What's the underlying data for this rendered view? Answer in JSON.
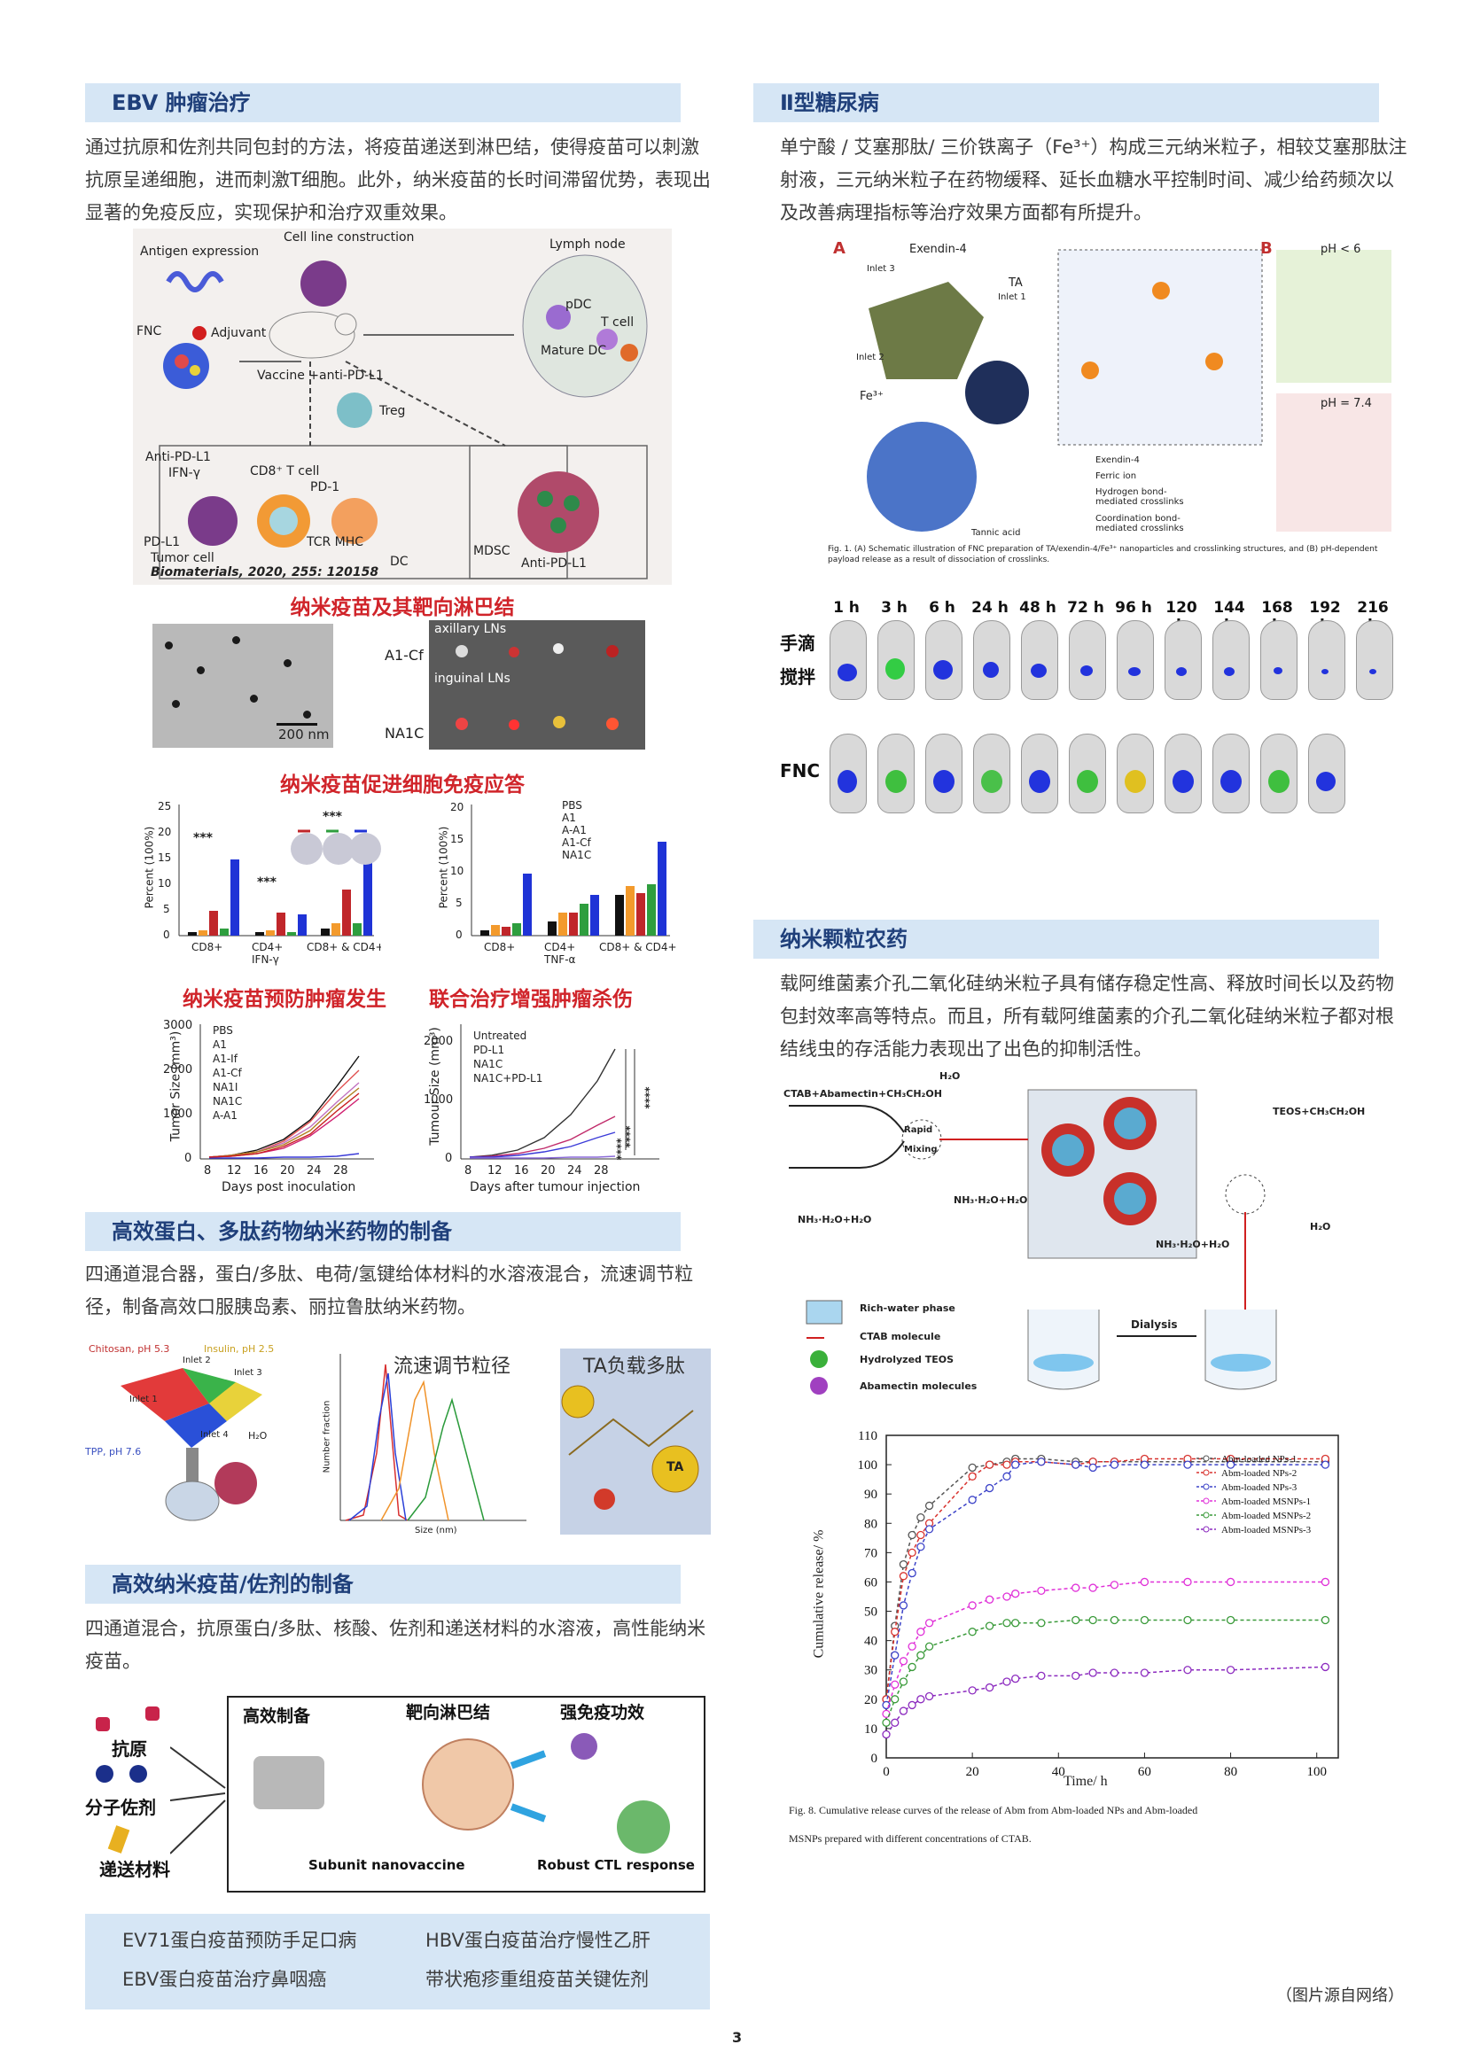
{
  "sections": {
    "ebv": {
      "title": "EBV 肿瘤治疗",
      "text": "通过抗原和佐剂共同包封的方法，将疫苗递送到淋巴结，使得疫苗可以刺激抗原呈递细胞，进而刺激T细胞。此外，纳米疫苗的长时间滞留优势，表现出显著的免疫反应，实现保护和治疗双重效果。"
    },
    "diabetes": {
      "title": "Ⅱ型糖尿病",
      "text": "单宁酸 / 艾塞那肽/ 三价铁离子（Fe³⁺）构成三元纳米粒子，相较艾塞那肽注射液，三元纳米粒子在药物缓释、延长血糖水平控制时间、减少给药频次以及改善病理指标等治疗效果方面都有所提升。"
    },
    "protein": {
      "title": "高效蛋白、多肽药物纳米药物的制备",
      "text": "四通道混合器，蛋白/多肽、电荷/氢键给体材料的水溶液混合，流速调节粒径，制备高效口服胰岛素、丽拉鲁肽纳米药物。"
    },
    "pesticide": {
      "title": "纳米颗粒农药",
      "text": "载阿维菌素介孔二氧化硅纳米粒子具有储存稳定性高、释放时间长以及药物包封效率高等特点。而且，所有载阿维菌素的介孔二氧化硅纳米粒子都对根结线虫的存活能力表现出了出色的抑制活性。"
    },
    "vaccine": {
      "title": "高效纳米疫苗/佐剂的制备",
      "text": "四通道混合，抗原蛋白/多肽、核酸、佐剂和递送材料的水溶液，高性能纳米疫苗。"
    }
  },
  "captions": {
    "lymph": "纳米疫苗及其靶向淋巴结",
    "cellular": "纳米疫苗促进细胞免疫应答",
    "prevent": "纳米疫苗预防肿瘤发生",
    "combo": "联合治疗增强肿瘤杀伤"
  },
  "fig_ebv": {
    "antigen_expression": "Antigen expression",
    "cell_line": "Cell line construction",
    "lymph_node": "Lymph node",
    "fnc": "FNC",
    "adjuvant": "Adjuvant",
    "pdc": "pDC",
    "tcell": "T cell",
    "mature_dc": "Mature DC",
    "vaccine_anti": "Vaccine +anti-PD-L1",
    "treg": "Treg",
    "anti_pdl1": "Anti-PD-L1",
    "ifn": "IFN-γ",
    "cd8": "CD8⁺ T cell",
    "pd1": "PD-1",
    "pdl1": "PD-L1",
    "tcr": "TCR MHC",
    "tumor_cell": "Tumor cell",
    "dc": "DC",
    "mdsc": "MDSC",
    "anti_pdl1_2": "Anti-PD-L1",
    "ref": "Biomaterials, 2020, 255: 120158"
  },
  "fig_tem": {
    "scale": "200 nm",
    "a1cf": "A1-Cf",
    "na1c": "NA1C",
    "axillary": "axillary LNs",
    "inguinal": "inguinal LNs"
  },
  "bar_left": {
    "ylabel": "Percent (100%)",
    "yticks": [
      "0",
      "5",
      "10",
      "15",
      "20",
      "25"
    ],
    "groups": [
      "CD8+",
      "CD4+ IFN-γ",
      "CD8+ & CD4+"
    ],
    "sig": [
      "***",
      "***",
      "***"
    ]
  },
  "bar_right": {
    "ylabel": "Percent (100%)",
    "yticks": [
      "0",
      "5",
      "10",
      "15",
      "20"
    ],
    "groups": [
      "CD8+",
      "CD4+ TNF-α",
      "CD8+ & CD4+"
    ],
    "legend": [
      "PBS",
      "A1",
      "A-A1",
      "A1-Cf",
      "NA1C"
    ],
    "legend_colors": [
      "#111111",
      "#f39a2c",
      "#c0262a",
      "#2e9e3e",
      "#1f33d6"
    ]
  },
  "line_left": {
    "ylabel": "Tumor Size (mm³)",
    "xlabel": "Days post inoculation",
    "yticks": [
      "0",
      "1000",
      "2000",
      "3000"
    ],
    "xticks": [
      "8",
      "12",
      "16",
      "20",
      "24",
      "28"
    ],
    "legend": [
      "PBS",
      "A1",
      "A1-If",
      "A1-Cf",
      "NA1I",
      "NA1C",
      "A-A1"
    ]
  },
  "line_right": {
    "ylabel": "Tumour Size (mm³)",
    "xlabel": "Days after tumour injection",
    "yticks": [
      "0",
      "1000",
      "2000"
    ],
    "xticks": [
      "8",
      "12",
      "16",
      "20",
      "24",
      "28"
    ],
    "legend": [
      "Untreated",
      "PD-L1",
      "NA1C",
      "NA1C+PD-L1"
    ],
    "sig": [
      "****",
      "****",
      "****"
    ]
  },
  "fig_mixer": {
    "chitosan": "Chitosan, pH 5.3",
    "insulin": "Insulin, pH 2.5",
    "tpp": "TPP, pH 7.6",
    "h2o": "H₂O",
    "inlet1": "Inlet 1",
    "inlet2": "Inlet 2",
    "inlet3": "Inlet 3",
    "inlet4": "Inlet 4",
    "flow_label": "流速调节粒径",
    "ta_label": "TA负载多肽",
    "x_axis": "Size (nm)",
    "y_axis": "Number fraction",
    "ta": "TA"
  },
  "fig_vaccine": {
    "antigen": "抗原",
    "adjuvant": "分子佐剂",
    "delivery": "递送材料",
    "efficient": "高效制备",
    "target": "靶向淋巴结",
    "strong": "强免疫功效",
    "subunit": "Subunit nanovaccine",
    "ctl": "Robust CTL response"
  },
  "bottom_list": {
    "item1": "EV71蛋白疫苗预防手足口病",
    "item2": "HBV蛋白疫苗治疗慢性乙肝",
    "item3": "EBV蛋白疫苗治疗鼻咽癌",
    "item4": "带状疱疹重组疫苗关键佐剂"
  },
  "fig_fnc": {
    "panel_a": "A",
    "panel_b": "B",
    "exendin": "Exendin-4",
    "inlet1": "Inlet 1",
    "inlet2": "Inlet 2",
    "inlet3": "Inlet 3",
    "ta": "TA",
    "fe": "Fe³⁺",
    "ph_low": "pH < 6",
    "ph_high": "pH = 7.4",
    "legend1": "Exendin-4",
    "legend2": "Ferric ion",
    "legend3": "Hydrogen bond-mediated crosslinks",
    "legend4": "Coordination bond-mediated crosslinks",
    "tannic": "Tannic acid",
    "caption": "Fig. 1. (A) Schematic illustration of FNC preparation of TA/exendin-4/Fe³⁺ nanoparticles and crosslinking structures, and (B) pH-dependent payload release as a result of dissociation of crosslinks."
  },
  "fig_imaging": {
    "times": [
      "1 h",
      "3 h",
      "6 h",
      "24 h",
      "48 h",
      "72 h",
      "96 h",
      "120 h",
      "144 h",
      "168 h",
      "192 h",
      "216 h"
    ],
    "row1_a": "手滴",
    "row1_b": "搅拌",
    "row2": "FNC"
  },
  "fig_silica": {
    "ctab_left": "CTAB+Abamectin+CH₃CH₂OH",
    "h2o_top": "H₂O",
    "rapid": "Rapid",
    "mixing": "Mixing",
    "nh3_left": "NH₃·H₂O+H₂O",
    "nh3_mid": "NH₃·H₂O+H₂O",
    "teos": "TEOS+CH₃CH₂OH",
    "h2o_right": "H₂O",
    "nh3_bottom": "NH₃·H₂O+H₂O",
    "legend1": "Rich-water phase",
    "legend2": "CTAB molecule",
    "legend3": "Hydrolyzed TEOS",
    "legend4": "Abamectin molecules",
    "dialysis": "Dialysis"
  },
  "release_chart": {
    "ylabel": "Cumulative release/ %",
    "xlabel": "Time/ h",
    "yticks": [
      "0",
      "10",
      "20",
      "30",
      "40",
      "50",
      "60",
      "70",
      "80",
      "90",
      "100",
      "110"
    ],
    "xticks": [
      "0",
      "20",
      "40",
      "60",
      "80",
      "100"
    ],
    "caption1": "Fig. 8. Cumulative release curves of the release of Abm from Abm-loaded NPs and Abm-loaded",
    "caption2": "MSNPs prepared with different concentrations of CTAB."
  },
  "chart_data": {
    "type": "line",
    "xlabel": "Time/ h",
    "ylabel": "Cumulative release/ %",
    "xlim": [
      0,
      105
    ],
    "ylim": [
      0,
      110
    ],
    "x": [
      0,
      2,
      4,
      6,
      8,
      10,
      20,
      24,
      28,
      30,
      36,
      44,
      48,
      53,
      60,
      70,
      80,
      102
    ],
    "series": [
      {
        "name": "Abm-loaded NPs-1",
        "color": "#555555",
        "values": [
          20,
          45,
          66,
          76,
          82,
          86,
          99,
          100,
          101,
          102,
          102,
          101,
          101,
          101,
          101,
          101,
          101,
          101
        ]
      },
      {
        "name": "Abm-loaded NPs-2",
        "color": "#d8322e",
        "values": [
          20,
          43,
          62,
          70,
          76,
          80,
          96,
          100,
          100,
          101,
          101,
          100,
          101,
          101,
          102,
          102,
          102,
          102
        ]
      },
      {
        "name": "Abm-loaded NPs-3",
        "color": "#3c43c8",
        "values": [
          18,
          35,
          52,
          63,
          72,
          78,
          88,
          92,
          96,
          100,
          101,
          100,
          99,
          100,
          100,
          100,
          100,
          100
        ]
      },
      {
        "name": "Abm-loaded MSNPs-1",
        "color": "#e030d8",
        "values": [
          15,
          25,
          33,
          38,
          43,
          46,
          52,
          54,
          55,
          56,
          57,
          58,
          58,
          59,
          60,
          60,
          60,
          60
        ]
      },
      {
        "name": "Abm-loaded MSNPs-2",
        "color": "#3a9a3a",
        "values": [
          12,
          20,
          26,
          31,
          35,
          38,
          43,
          45,
          46,
          46,
          46,
          47,
          47,
          47,
          47,
          47,
          47,
          47
        ]
      },
      {
        "name": "Abm-loaded MSNPs-3",
        "color": "#8c2bbf",
        "values": [
          8,
          12,
          16,
          18,
          20,
          21,
          23,
          24,
          26,
          27,
          28,
          28,
          29,
          29,
          29,
          30,
          30,
          31
        ]
      }
    ]
  },
  "footer": {
    "source": "（图片源自网络）",
    "page": "3"
  }
}
